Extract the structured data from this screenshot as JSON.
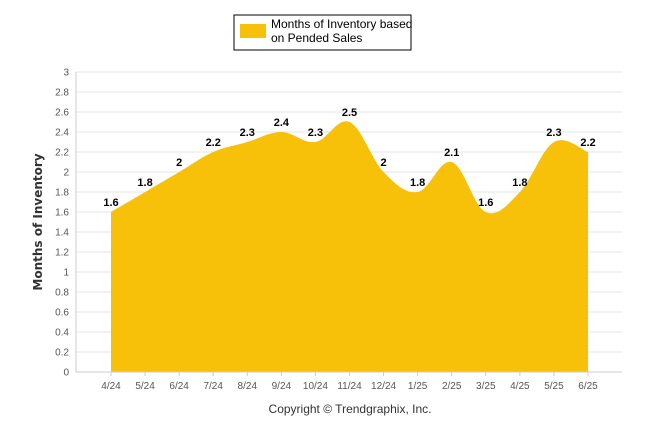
{
  "chart_data": {
    "type": "area",
    "title": "",
    "xlabel": "",
    "ylabel": "Months of Inventory",
    "categories": [
      "4/24",
      "5/24",
      "6/24",
      "7/24",
      "8/24",
      "9/24",
      "10/24",
      "11/24",
      "12/24",
      "1/25",
      "2/25",
      "3/25",
      "4/25",
      "5/25",
      "6/25"
    ],
    "series": [
      {
        "name": "Months of Inventory based on Pended Sales",
        "values": [
          1.6,
          1.8,
          2,
          2.2,
          2.3,
          2.4,
          2.3,
          2.5,
          2,
          1.8,
          2.1,
          1.6,
          1.8,
          2.3,
          2.2
        ],
        "color": "#F7C10A"
      }
    ],
    "data_labels": [
      "1.6",
      "1.8",
      "2",
      "2.2",
      "2.3",
      "2.4",
      "2.3",
      "2.5",
      "2",
      "1.8",
      "2.1",
      "1.6",
      "1.8",
      "2.3",
      "2.2"
    ],
    "ylim": [
      0,
      3
    ],
    "yticks": [
      "0",
      "0.2",
      "0.4",
      "0.6",
      "0.8",
      "1",
      "1.2",
      "1.4",
      "1.6",
      "1.8",
      "2",
      "2.2",
      "2.4",
      "2.6",
      "2.8",
      "3"
    ],
    "grid": true,
    "legend_position": "top-center"
  },
  "legend": {
    "line1": "Months of Inventory based",
    "line2": "on Pended Sales"
  },
  "footer": "Copyright © Trendgraphix, Inc."
}
